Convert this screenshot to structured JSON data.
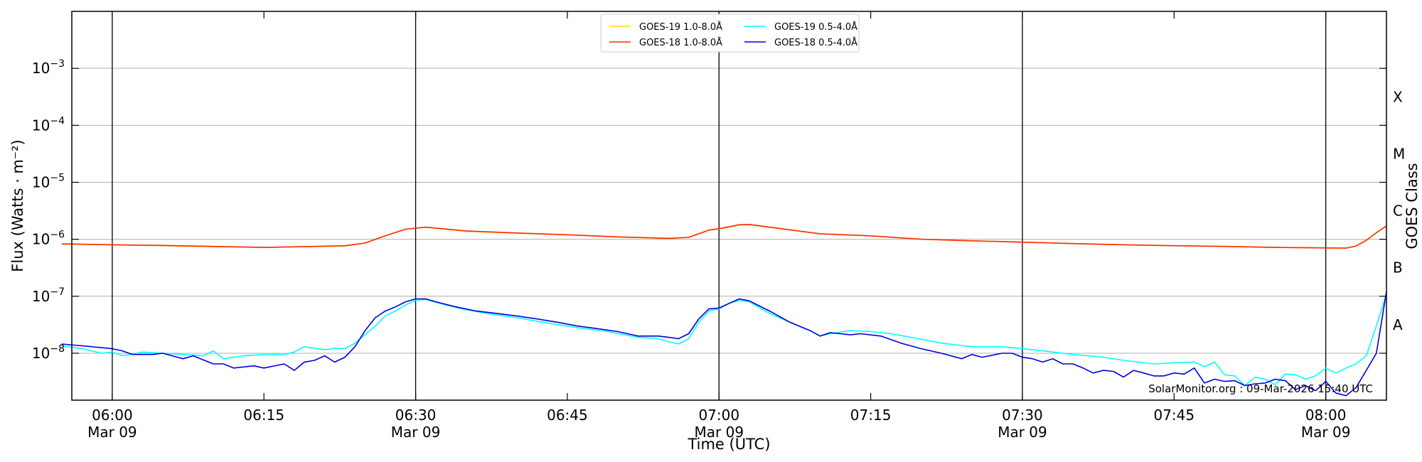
{
  "chart_data": {
    "type": "line",
    "xlabel": "Time (UTC)",
    "ylabel": "Flux (Watts · m⁻²)",
    "right_label": "GOES Class",
    "y_scale": "log",
    "ylim": [
      1.5e-09,
      0.01
    ],
    "xlim": [
      "05:56",
      "08:06"
    ],
    "grid": "horizontal at decades",
    "legend_placement": "top-center",
    "credit": "SolarMonitor.org : 09-Mar-2026 15:40 UTC",
    "x_ticks": [
      {
        "time": "06:00",
        "label": "06:00",
        "date": "Mar 09"
      },
      {
        "time": "06:15",
        "label": "06:15",
        "date": ""
      },
      {
        "time": "06:30",
        "label": "06:30",
        "date": "Mar 09"
      },
      {
        "time": "06:45",
        "label": "06:45",
        "date": ""
      },
      {
        "time": "07:00",
        "label": "07:00",
        "date": "Mar 09"
      },
      {
        "time": "07:15",
        "label": "07:15",
        "date": ""
      },
      {
        "time": "07:30",
        "label": "07:30",
        "date": "Mar 09"
      },
      {
        "time": "07:45",
        "label": "07:45",
        "date": ""
      },
      {
        "time": "08:00",
        "label": "08:00",
        "date": "Mar 09"
      }
    ],
    "vertical_lines": [
      "06:00",
      "06:30",
      "07:00",
      "07:30",
      "08:00"
    ],
    "y_ticks": [
      {
        "value": 1e-08,
        "base": "10",
        "exp": "−8"
      },
      {
        "value": 1e-07,
        "base": "10",
        "exp": "−7"
      },
      {
        "value": 1e-06,
        "base": "10",
        "exp": "−6"
      },
      {
        "value": 1e-05,
        "base": "10",
        "exp": "−5"
      },
      {
        "value": 0.0001,
        "base": "10",
        "exp": "−4"
      },
      {
        "value": 0.001,
        "base": "10",
        "exp": "−3"
      }
    ],
    "goes_classes": [
      {
        "label": "A",
        "value": 3.16e-08
      },
      {
        "label": "B",
        "value": 3.16e-07
      },
      {
        "label": "C",
        "value": 3.16e-06
      },
      {
        "label": "M",
        "value": 3.16e-05
      },
      {
        "label": "X",
        "value": 0.000316
      }
    ],
    "series": [
      {
        "name": "GOES-19 1.0-8.0Å",
        "color": "#ffd700",
        "points": [
          [
            "05:55",
            8.2e-07
          ],
          [
            "06:00",
            8e-07
          ],
          [
            "06:05",
            7.7e-07
          ],
          [
            "06:10",
            7.4e-07
          ],
          [
            "06:15",
            7.2e-07
          ],
          [
            "06:20",
            7.5e-07
          ],
          [
            "06:23",
            7.6e-07
          ],
          [
            "06:25",
            8.6e-07
          ],
          [
            "06:27",
            1.15e-06
          ],
          [
            "06:29",
            1.5e-06
          ],
          [
            "06:31",
            1.62e-06
          ],
          [
            "06:35",
            1.38e-06
          ],
          [
            "06:40",
            1.28e-06
          ],
          [
            "06:45",
            1.2e-06
          ],
          [
            "06:50",
            1.1e-06
          ],
          [
            "06:55",
            1.03e-06
          ],
          [
            "06:57",
            1.08e-06
          ],
          [
            "06:59",
            1.45e-06
          ],
          [
            "07:00",
            1.52e-06
          ],
          [
            "07:02",
            1.78e-06
          ],
          [
            "07:03",
            1.8e-06
          ],
          [
            "07:05",
            1.62e-06
          ],
          [
            "07:10",
            1.25e-06
          ],
          [
            "07:15",
            1.15e-06
          ],
          [
            "07:20",
            1e-06
          ],
          [
            "07:25",
            9.4e-07
          ],
          [
            "07:30",
            8.9e-07
          ],
          [
            "07:35",
            8.4e-07
          ],
          [
            "07:40",
            8e-07
          ],
          [
            "07:45",
            7.7e-07
          ],
          [
            "07:50",
            7.5e-07
          ],
          [
            "07:55",
            7.2e-07
          ],
          [
            "08:00",
            7.05e-07
          ],
          [
            "08:02",
            7e-07
          ],
          [
            "08:03",
            7.6e-07
          ],
          [
            "08:04",
            9.5e-07
          ],
          [
            "08:05",
            1.3e-06
          ],
          [
            "08:06",
            1.7e-06
          ]
        ]
      },
      {
        "name": "GOES-18 1.0-8.0Å",
        "color": "#ff2a00",
        "points": [
          [
            "05:55",
            8.3e-07
          ],
          [
            "06:00",
            8e-07
          ],
          [
            "06:05",
            7.8e-07
          ],
          [
            "06:10",
            7.5e-07
          ],
          [
            "06:15",
            7.2e-07
          ],
          [
            "06:20",
            7.5e-07
          ],
          [
            "06:23",
            7.7e-07
          ],
          [
            "06:25",
            8.6e-07
          ],
          [
            "06:27",
            1.15e-06
          ],
          [
            "06:29",
            1.5e-06
          ],
          [
            "06:31",
            1.63e-06
          ],
          [
            "06:35",
            1.4e-06
          ],
          [
            "06:40",
            1.29e-06
          ],
          [
            "06:45",
            1.2e-06
          ],
          [
            "06:50",
            1.1e-06
          ],
          [
            "06:55",
            1.04e-06
          ],
          [
            "06:57",
            1.08e-06
          ],
          [
            "06:59",
            1.45e-06
          ],
          [
            "07:00",
            1.53e-06
          ],
          [
            "07:02",
            1.8e-06
          ],
          [
            "07:03",
            1.82e-06
          ],
          [
            "07:05",
            1.63e-06
          ],
          [
            "07:10",
            1.25e-06
          ],
          [
            "07:15",
            1.15e-06
          ],
          [
            "07:20",
            1e-06
          ],
          [
            "07:25",
            9.4e-07
          ],
          [
            "07:30",
            8.9e-07
          ],
          [
            "07:35",
            8.4e-07
          ],
          [
            "07:40",
            8e-07
          ],
          [
            "07:45",
            7.7e-07
          ],
          [
            "07:50",
            7.5e-07
          ],
          [
            "07:55",
            7.2e-07
          ],
          [
            "08:00",
            7.05e-07
          ],
          [
            "08:02",
            7e-07
          ],
          [
            "08:03",
            7.6e-07
          ],
          [
            "08:04",
            9.6e-07
          ],
          [
            "08:05",
            1.3e-06
          ],
          [
            "08:06",
            1.72e-06
          ]
        ]
      },
      {
        "name": "GOES-19 0.5-4.0Å",
        "color": "#00ffff",
        "points": [
          [
            "05:55",
            1.35e-08
          ],
          [
            "05:57",
            1.2e-08
          ],
          [
            "05:59",
            1e-08
          ],
          [
            "06:00",
            1.05e-08
          ],
          [
            "06:01",
            9e-09
          ],
          [
            "06:03",
            1.05e-08
          ],
          [
            "06:05",
            1e-08
          ],
          [
            "06:07",
            9.5e-09
          ],
          [
            "06:09",
            9e-09
          ],
          [
            "06:10",
            1.1e-08
          ],
          [
            "06:11",
            8e-09
          ],
          [
            "06:13",
            9e-09
          ],
          [
            "06:15",
            9.5e-09
          ],
          [
            "06:17",
            9.5e-09
          ],
          [
            "06:18",
            1.05e-08
          ],
          [
            "06:19",
            1.3e-08
          ],
          [
            "06:21",
            1.15e-08
          ],
          [
            "06:22",
            1.22e-08
          ],
          [
            "06:23",
            1.2e-08
          ],
          [
            "06:24",
            1.5e-08
          ],
          [
            "06:26",
            3e-08
          ],
          [
            "06:27",
            4.5e-08
          ],
          [
            "06:28",
            5.5e-08
          ],
          [
            "06:29",
            7e-08
          ],
          [
            "06:30",
            8.5e-08
          ],
          [
            "06:31",
            8.8e-08
          ],
          [
            "06:33",
            7e-08
          ],
          [
            "06:35",
            5.8e-08
          ],
          [
            "06:37",
            5e-08
          ],
          [
            "06:40",
            4.2e-08
          ],
          [
            "06:43",
            3.4e-08
          ],
          [
            "06:46",
            2.8e-08
          ],
          [
            "06:49",
            2.4e-08
          ],
          [
            "06:52",
            1.9e-08
          ],
          [
            "06:54",
            1.8e-08
          ],
          [
            "06:55",
            1.6e-08
          ],
          [
            "06:56",
            1.45e-08
          ],
          [
            "06:57",
            1.8e-08
          ],
          [
            "06:58",
            3.5e-08
          ],
          [
            "06:59",
            5.5e-08
          ],
          [
            "07:00",
            6e-08
          ],
          [
            "07:01",
            7.5e-08
          ],
          [
            "07:02",
            8.5e-08
          ],
          [
            "07:03",
            8e-08
          ],
          [
            "07:05",
            5e-08
          ],
          [
            "07:07",
            3.5e-08
          ],
          [
            "07:09",
            2.5e-08
          ],
          [
            "07:10",
            2e-08
          ],
          [
            "07:11",
            2.2e-08
          ],
          [
            "07:13",
            2.5e-08
          ],
          [
            "07:15",
            2.4e-08
          ],
          [
            "07:17",
            2.2e-08
          ],
          [
            "07:19",
            1.9e-08
          ],
          [
            "07:22",
            1.5e-08
          ],
          [
            "07:25",
            1.3e-08
          ],
          [
            "07:28",
            1.3e-08
          ],
          [
            "07:30",
            1.2e-08
          ],
          [
            "07:32",
            1.1e-08
          ],
          [
            "07:35",
            9.5e-09
          ],
          [
            "07:38",
            8.5e-09
          ],
          [
            "07:40",
            7.5e-09
          ],
          [
            "07:43",
            6.5e-09
          ],
          [
            "07:45",
            6.8e-09
          ],
          [
            "07:47",
            7e-09
          ],
          [
            "07:48",
            5.8e-09
          ],
          [
            "07:49",
            7e-09
          ],
          [
            "07:50",
            4.2e-09
          ],
          [
            "07:51",
            4e-09
          ],
          [
            "07:52",
            2.7e-09
          ],
          [
            "07:53",
            3.8e-09
          ],
          [
            "07:54",
            3.5e-09
          ],
          [
            "07:55",
            2.8e-09
          ],
          [
            "07:56",
            4.3e-09
          ],
          [
            "07:57",
            4.2e-09
          ],
          [
            "07:58",
            3.5e-09
          ],
          [
            "07:59",
            4e-09
          ],
          [
            "08:00",
            5.5e-09
          ],
          [
            "08:01",
            4.5e-09
          ],
          [
            "08:02",
            5.5e-09
          ],
          [
            "08:03",
            6.5e-09
          ],
          [
            "08:04",
            9e-09
          ],
          [
            "08:05",
            3e-08
          ],
          [
            "08:06",
            1.1e-07
          ]
        ]
      },
      {
        "name": "GOES-18 0.5-4.0Å",
        "color": "#0000dd",
        "points": [
          [
            "05:55",
            1.45e-08
          ],
          [
            "05:57",
            1.35e-08
          ],
          [
            "05:59",
            1.25e-08
          ],
          [
            "06:00",
            1.2e-08
          ],
          [
            "06:01",
            1.1e-08
          ],
          [
            "06:02",
            9.5e-09
          ],
          [
            "06:04",
            9.5e-09
          ],
          [
            "06:05",
            1e-08
          ],
          [
            "06:07",
            8e-09
          ],
          [
            "06:08",
            9e-09
          ],
          [
            "06:10",
            6.5e-09
          ],
          [
            "06:11",
            6.5e-09
          ],
          [
            "06:12",
            5.5e-09
          ],
          [
            "06:14",
            6e-09
          ],
          [
            "06:15",
            5.5e-09
          ],
          [
            "06:17",
            6.5e-09
          ],
          [
            "06:18",
            5e-09
          ],
          [
            "06:19",
            7e-09
          ],
          [
            "06:20",
            7.5e-09
          ],
          [
            "06:21",
            9e-09
          ],
          [
            "06:22",
            7e-09
          ],
          [
            "06:23",
            8.5e-09
          ],
          [
            "06:24",
            1.3e-08
          ],
          [
            "06:25",
            2.5e-08
          ],
          [
            "06:26",
            4.2e-08
          ],
          [
            "06:27",
            5.5e-08
          ],
          [
            "06:28",
            6.5e-08
          ],
          [
            "06:29",
            8e-08
          ],
          [
            "06:30",
            9e-08
          ],
          [
            "06:31",
            9e-08
          ],
          [
            "06:32",
            8e-08
          ],
          [
            "06:34",
            6.5e-08
          ],
          [
            "06:36",
            5.5e-08
          ],
          [
            "06:38",
            5e-08
          ],
          [
            "06:40",
            4.5e-08
          ],
          [
            "06:42",
            4e-08
          ],
          [
            "06:44",
            3.5e-08
          ],
          [
            "06:46",
            3e-08
          ],
          [
            "06:48",
            2.7e-08
          ],
          [
            "06:50",
            2.4e-08
          ],
          [
            "06:52",
            2e-08
          ],
          [
            "06:54",
            2e-08
          ],
          [
            "06:55",
            1.9e-08
          ],
          [
            "06:56",
            1.8e-08
          ],
          [
            "06:57",
            2.2e-08
          ],
          [
            "06:58",
            4e-08
          ],
          [
            "06:59",
            6e-08
          ],
          [
            "07:00",
            6.2e-08
          ],
          [
            "07:01",
            7.5e-08
          ],
          [
            "07:02",
            9e-08
          ],
          [
            "07:03",
            8.3e-08
          ],
          [
            "07:05",
            5.5e-08
          ],
          [
            "07:07",
            3.5e-08
          ],
          [
            "07:09",
            2.5e-08
          ],
          [
            "07:10",
            2e-08
          ],
          [
            "07:11",
            2.3e-08
          ],
          [
            "07:13",
            2.1e-08
          ],
          [
            "07:14",
            2.2e-08
          ],
          [
            "07:16",
            2e-08
          ],
          [
            "07:18",
            1.5e-08
          ],
          [
            "07:20",
            1.2e-08
          ],
          [
            "07:22",
            1e-08
          ],
          [
            "07:24",
            8e-09
          ],
          [
            "07:25",
            9.5e-09
          ],
          [
            "07:26",
            8.5e-09
          ],
          [
            "07:28",
            1e-08
          ],
          [
            "07:29",
            1e-08
          ],
          [
            "07:30",
            8.5e-09
          ],
          [
            "07:31",
            8e-09
          ],
          [
            "07:32",
            7e-09
          ],
          [
            "07:33",
            8e-09
          ],
          [
            "07:34",
            6.5e-09
          ],
          [
            "07:35",
            6.5e-09
          ],
          [
            "07:36",
            5.5e-09
          ],
          [
            "07:37",
            4.5e-09
          ],
          [
            "07:38",
            5e-09
          ],
          [
            "07:39",
            4.8e-09
          ],
          [
            "07:40",
            3.8e-09
          ],
          [
            "07:41",
            5e-09
          ],
          [
            "07:42",
            4.5e-09
          ],
          [
            "07:43",
            4e-09
          ],
          [
            "07:44",
            4e-09
          ],
          [
            "07:45",
            4.5e-09
          ],
          [
            "07:46",
            4.3e-09
          ],
          [
            "07:47",
            5.5e-09
          ],
          [
            "07:48",
            3e-09
          ],
          [
            "07:49",
            3.5e-09
          ],
          [
            "07:50",
            3.2e-09
          ],
          [
            "07:51",
            3.3e-09
          ],
          [
            "07:52",
            2.7e-09
          ],
          [
            "07:53",
            2.9e-09
          ],
          [
            "07:54",
            3e-09
          ],
          [
            "07:55",
            3.5e-09
          ],
          [
            "07:56",
            3.3e-09
          ],
          [
            "07:57",
            2.3e-09
          ],
          [
            "07:58",
            2.7e-09
          ],
          [
            "07:59",
            2.2e-09
          ],
          [
            "08:00",
            3.2e-09
          ],
          [
            "08:01",
            2e-09
          ],
          [
            "08:02",
            1.8e-09
          ],
          [
            "08:03",
            2.5e-09
          ],
          [
            "08:04",
            5e-09
          ],
          [
            "08:05",
            1e-08
          ],
          [
            "08:06",
            1.2e-07
          ]
        ]
      }
    ]
  }
}
